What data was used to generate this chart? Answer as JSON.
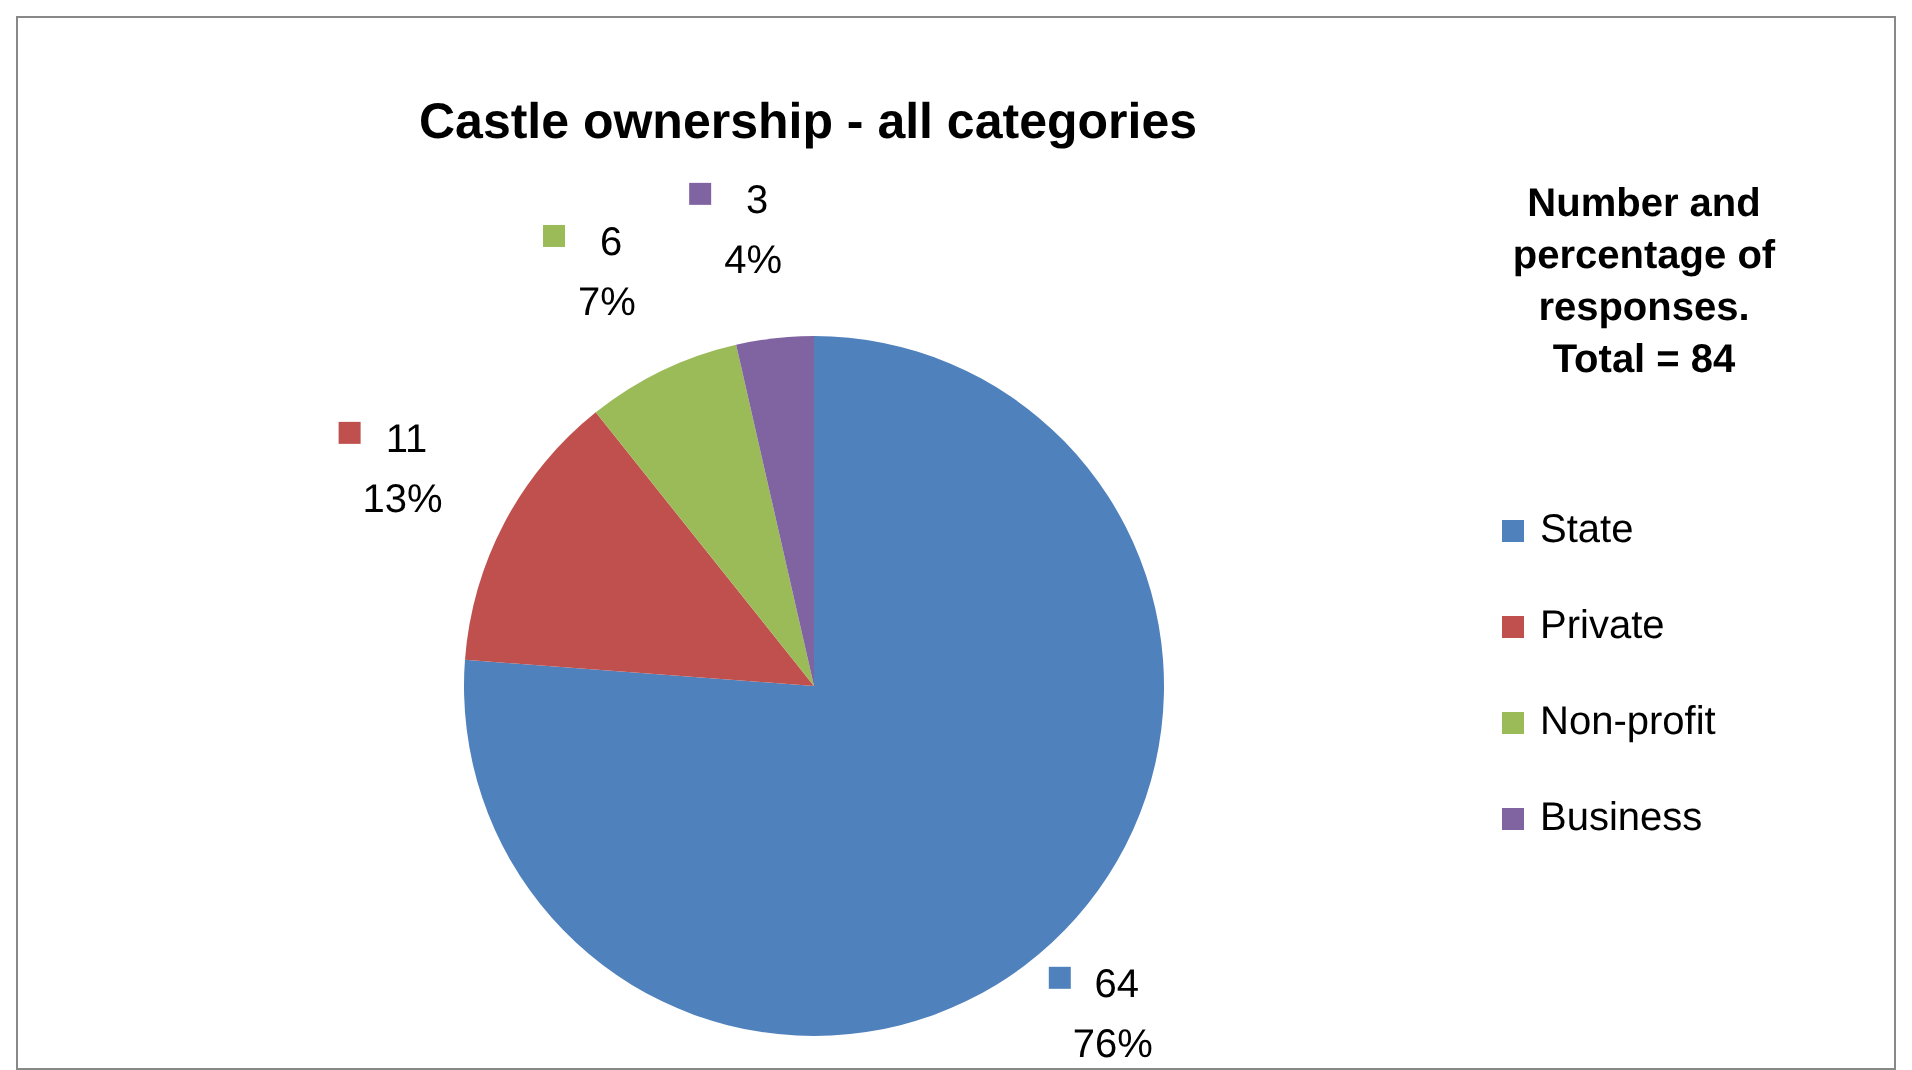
{
  "chart_data": {
    "type": "pie",
    "title": "Castle ownership - all categories",
    "legend_title": "Number and percentage of responses. Total = 84",
    "categories": [
      "State",
      "Private",
      "Non-profit",
      "Business"
    ],
    "values": [
      64,
      11,
      6,
      3
    ],
    "colors": [
      "#4f81bd",
      "#c0504d",
      "#9bbb59",
      "#8064a2"
    ],
    "value_labels": [
      "64\n76%",
      "11\n13%",
      "6\n7%",
      "3\n4%"
    ],
    "legend": "right"
  }
}
